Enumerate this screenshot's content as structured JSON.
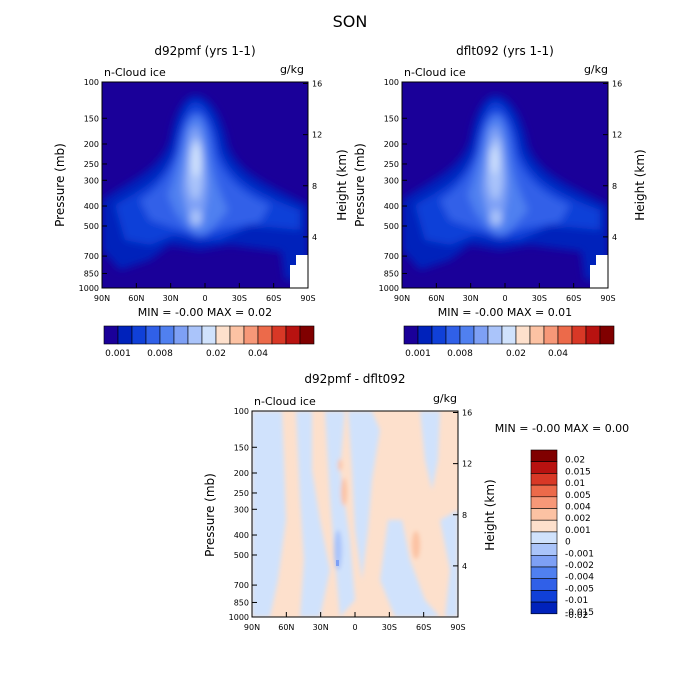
{
  "figure": {
    "season": "SON"
  },
  "chart_data": [
    {
      "type": "heatmap",
      "title": "d92pmf (yrs 1-1)",
      "variable": "n-Cloud ice",
      "units": "g/kg",
      "ylabel": "Pressure (mb)",
      "y2label": "Height (km)",
      "x_ticks": [
        "90N",
        "60N",
        "30N",
        "0",
        "30S",
        "60S",
        "90S"
      ],
      "y_ticks": [
        100,
        150,
        200,
        250,
        300,
        400,
        500,
        700,
        850,
        1000
      ],
      "y2_ticks": [
        4,
        8,
        12,
        16
      ],
      "stats": "MIN = -0.00 MAX = 0.02",
      "ylim": [
        1000,
        100
      ],
      "xlim": [
        "90N",
        "90S"
      ],
      "colorbar": {
        "levels": 14,
        "colors": [
          "#1a0099",
          "#0022bb",
          "#1040d8",
          "#3060e8",
          "#5080f0",
          "#7ea0f5",
          "#aac4fa",
          "#d0e2fc",
          "#fde0cc",
          "#fcc2a3",
          "#f79878",
          "#ec6a4a",
          "#d83826",
          "#b81210",
          "#800000"
        ],
        "labels": [
          "0.001",
          "0.008",
          "0.02",
          "0.04"
        ]
      }
    },
    {
      "type": "heatmap",
      "title": "dflt092 (yrs 1-1)",
      "variable": "n-Cloud ice",
      "units": "g/kg",
      "ylabel": "Pressure (mb)",
      "y2label": "Height (km)",
      "x_ticks": [
        "90N",
        "60N",
        "30N",
        "0",
        "30S",
        "60S",
        "90S"
      ],
      "y_ticks": [
        100,
        150,
        200,
        250,
        300,
        400,
        500,
        700,
        850,
        1000
      ],
      "y2_ticks": [
        4,
        8,
        12,
        16
      ],
      "stats": "MIN = -0.00 MAX = 0.01",
      "ylim": [
        1000,
        100
      ],
      "xlim": [
        "90N",
        "90S"
      ],
      "colorbar": {
        "levels": 14,
        "colors": [
          "#1a0099",
          "#0022bb",
          "#1040d8",
          "#3060e8",
          "#5080f0",
          "#7ea0f5",
          "#aac4fa",
          "#d0e2fc",
          "#fde0cc",
          "#fcc2a3",
          "#f79878",
          "#ec6a4a",
          "#d83826",
          "#b81210",
          "#800000"
        ],
        "labels": [
          "0.001",
          "0.008",
          "0.02",
          "0.04"
        ]
      }
    },
    {
      "type": "heatmap",
      "title": "d92pmf - dflt092",
      "variable": "n-Cloud ice",
      "units": "g/kg",
      "ylabel": "Pressure (mb)",
      "y2label": "Height (km)",
      "x_ticks": [
        "90N",
        "60N",
        "30N",
        "0",
        "30S",
        "60S",
        "90S"
      ],
      "y_ticks": [
        100,
        150,
        200,
        250,
        300,
        400,
        500,
        700,
        850,
        1000
      ],
      "y2_ticks": [
        4,
        8,
        12,
        16
      ],
      "stats": "MIN = -0.00 MAX = 0.00",
      "ylim": [
        1000,
        100
      ],
      "xlim": [
        "90N",
        "90S"
      ],
      "colorbar": {
        "colors": [
          "#800000",
          "#b81210",
          "#d83826",
          "#ec6a4a",
          "#f79878",
          "#fcc2a3",
          "#fde0cc",
          "#d0e2fc",
          "#aac4fa",
          "#7ea0f5",
          "#5080f0",
          "#3060e8",
          "#1040d8",
          "#0022bb"
        ],
        "labels": [
          "0.02",
          "0.015",
          "0.01",
          "0.005",
          "0.004",
          "0.002",
          "0.001",
          "0",
          "-0.001",
          "-0.002",
          "-0.004",
          "-0.005",
          "-0.01",
          "-0.015",
          "-0.02"
        ]
      }
    }
  ]
}
